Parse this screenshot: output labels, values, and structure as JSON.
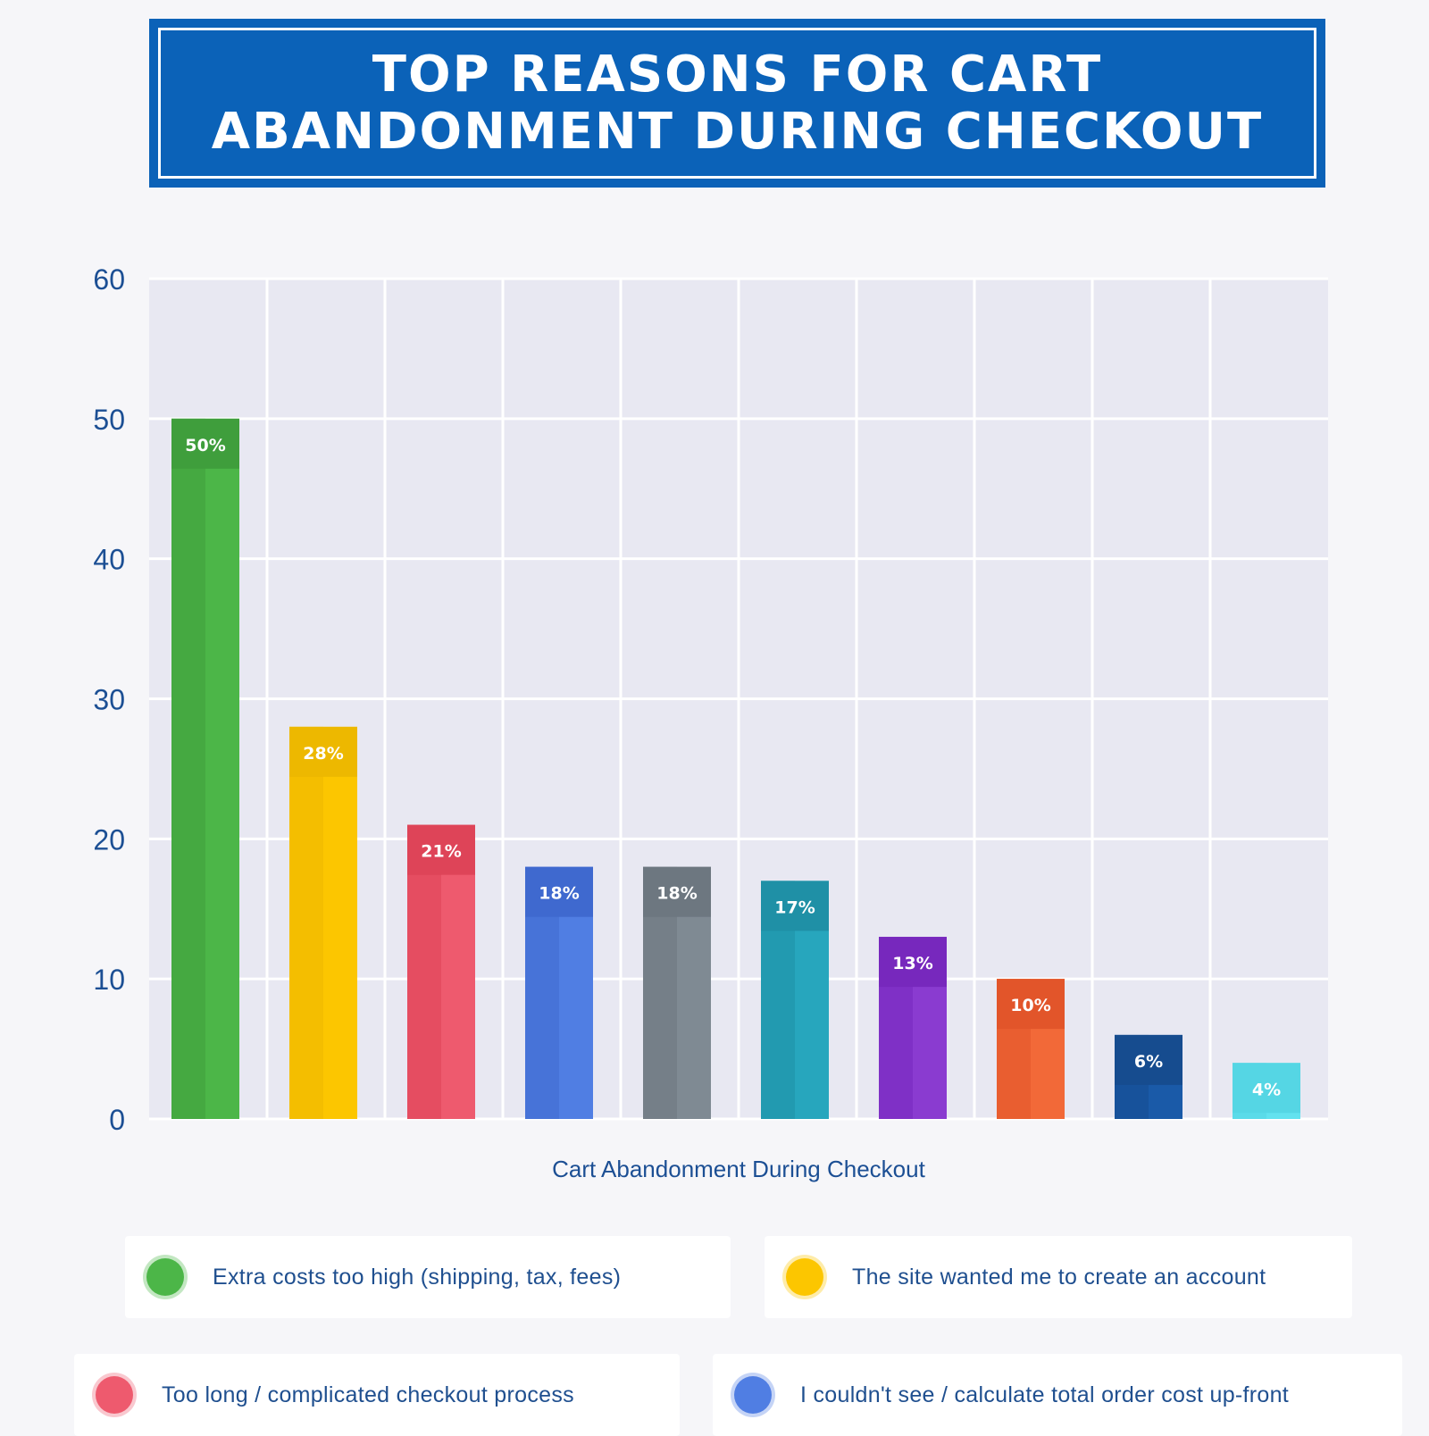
{
  "title": {
    "line1": "TOP REASONS FOR CART",
    "line2": "ABANDONMENT DURING CHECKOUT"
  },
  "chart_data": {
    "type": "bar",
    "title": "TOP REASONS FOR CART ABANDONMENT DURING CHECKOUT",
    "xlabel": "Cart Abandonment During Checkout",
    "ylabel": "",
    "ylim": [
      0,
      60
    ],
    "yticks": [
      0,
      10,
      20,
      30,
      40,
      50,
      60
    ],
    "grid": true,
    "categories": [
      "Extra costs too high (shipping, tax, fees)",
      "The site wanted me to create an account",
      "Too long / complicated checkout process",
      "I couldn't see / calculate total order cost up-front",
      "",
      "",
      "",
      "",
      "",
      ""
    ],
    "values": [
      50,
      28,
      21,
      18,
      18,
      17,
      13,
      10,
      6,
      4
    ],
    "labels": [
      "50%",
      "28%",
      "21%",
      "18%",
      "18%",
      "17%",
      "13%",
      "10%",
      "6%",
      "4%"
    ],
    "colors": [
      "#4cb648",
      "#fcc600",
      "#ee5a6e",
      "#507ee3",
      "#7f8a93",
      "#27a6bd",
      "#8a3bd0",
      "#f26938",
      "#1a5aa8",
      "#63e2ef"
    ],
    "label_colors": [
      "#3f9e3c",
      "#edb800",
      "#de4458",
      "#3f69cf",
      "#6d7780",
      "#1f90a6",
      "#7728bd",
      "#e2552a",
      "#164c8f",
      "#55d6e4"
    ]
  },
  "legend": [
    {
      "label": "Extra costs too high (shipping, tax, fees)",
      "color": "#4cb648"
    },
    {
      "label": "The site wanted me to create an account",
      "color": "#fcc600"
    },
    {
      "label": "Too long / complicated checkout process",
      "color": "#ee5a6e"
    },
    {
      "label": "I couldn't see / calculate total order cost up-front",
      "color": "#507ee3"
    }
  ]
}
